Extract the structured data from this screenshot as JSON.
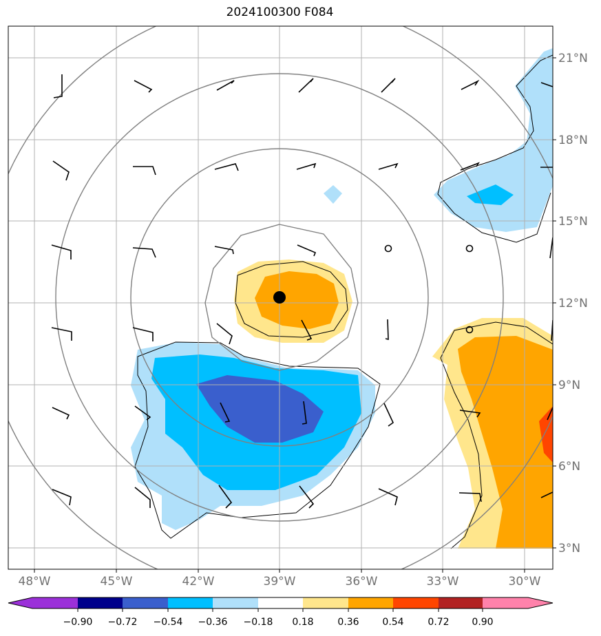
{
  "title": "2024100300 F084",
  "lon_labels": [
    "48°W",
    "45°W",
    "42°W",
    "39°W",
    "36°W",
    "33°W",
    "30°W"
  ],
  "lat_labels": [
    "21°N",
    "18°N",
    "15°N",
    "12°N",
    "9°N",
    "6°N",
    "3°N"
  ],
  "colorbar": {
    "ticks": [
      "−0.90",
      "−0.72",
      "−0.54",
      "−0.36",
      "−0.18",
      "0.18",
      "0.36",
      "0.54",
      "0.72",
      "0.90"
    ],
    "colors": [
      "#9b30d9",
      "#00008b",
      "#3a5fcd",
      "#00bfff",
      "#b0e0fa",
      "#ffffff",
      "#ffe68c",
      "#ffa500",
      "#ff4500",
      "#b22222",
      "#ff82ab"
    ]
  },
  "map": {
    "center_marker": "storm-center",
    "colors": {
      "light_blue": "#b0e0fa",
      "sky_blue": "#00bfff",
      "royal_blue": "#3a5fcd",
      "light_yellow": "#ffe68c",
      "orange": "#ffa500",
      "red_orange": "#ff4500"
    }
  }
}
